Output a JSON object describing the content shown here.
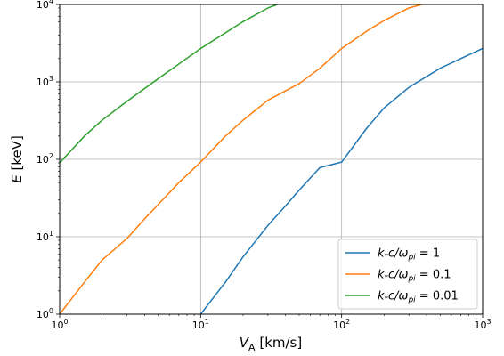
{
  "chart_data": {
    "type": "line",
    "xscale": "log",
    "yscale": "log",
    "xlim": [
      1,
      1000
    ],
    "ylim": [
      1,
      10000
    ],
    "grid": true,
    "legend_position": "bottom-right",
    "xlabel": {
      "main": "V",
      "sub": "A",
      "unit": " [km/s]"
    },
    "ylabel": {
      "main": "E",
      "unit": " [keV]"
    },
    "x_ticks": [
      {
        "base": "10",
        "exp": "0"
      },
      {
        "base": "10",
        "exp": "1"
      },
      {
        "base": "10",
        "exp": "2"
      },
      {
        "base": "10",
        "exp": "3"
      }
    ],
    "y_ticks": [
      {
        "base": "10",
        "exp": "0"
      },
      {
        "base": "10",
        "exp": "1"
      },
      {
        "base": "10",
        "exp": "2"
      },
      {
        "base": "10",
        "exp": "3"
      },
      {
        "base": "10",
        "exp": "4"
      }
    ],
    "series": [
      {
        "name": "k*c/ω_pi = 1",
        "legend": {
          "k": "k",
          "star": "*",
          "c": "c/ω",
          "sub": "pi",
          "eq": " = 1"
        },
        "color": "#1f77b4",
        "x": [
          10,
          15,
          20,
          30,
          40,
          50,
          70,
          100,
          150,
          200,
          300,
          500,
          700,
          1000
        ],
        "y": [
          1,
          2.6,
          5.5,
          14,
          25,
          40,
          78,
          92,
          250,
          460,
          850,
          1500,
          2000,
          2700
        ]
      },
      {
        "name": "k*c/ω_pi = 0.1",
        "legend": {
          "k": "k",
          "star": "*",
          "c": "c/ω",
          "sub": "pi",
          "eq": " = 0.1"
        },
        "color": "#ff7f0e",
        "x": [
          1,
          1.5,
          2,
          3,
          4,
          5,
          7,
          10,
          15,
          20,
          30,
          50,
          70,
          100,
          150,
          200,
          300,
          370
        ],
        "y": [
          1,
          2.6,
          5,
          9.5,
          17,
          26,
          50,
          92,
          200,
          320,
          580,
          950,
          1500,
          2700,
          4500,
          6200,
          9000,
          10000
        ]
      },
      {
        "name": "k*c/ω_pi = 0.01",
        "legend": {
          "k": "k",
          "star": "*",
          "c": "c/ω",
          "sub": "pi",
          "eq": " = 0.01"
        },
        "color": "#2ca02c",
        "x": [
          1,
          1.5,
          2,
          3,
          4,
          5,
          7,
          10,
          15,
          20,
          30,
          35
        ],
        "y": [
          90,
          200,
          320,
          560,
          820,
          1100,
          1700,
          2700,
          4300,
          6000,
          9000,
          10000
        ]
      }
    ]
  }
}
